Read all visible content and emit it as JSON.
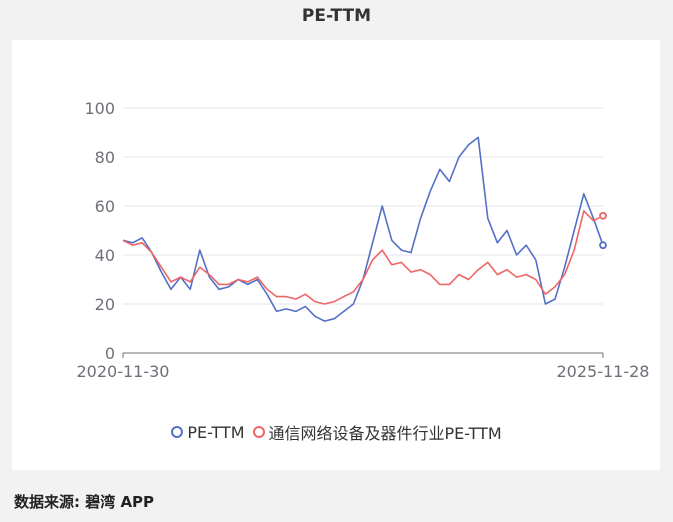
{
  "title": "PE-TTM",
  "source_label": "数据来源: 碧湾 APP",
  "chart_data": {
    "type": "line",
    "title": "PE-TTM",
    "x_start": "2020-11-30",
    "x_end": "2025-11-28",
    "x_tick_labels": [
      "2020-11-30",
      "2025-11-28"
    ],
    "ylim": [
      0,
      100
    ],
    "y_ticks": [
      0,
      20,
      40,
      60,
      80,
      100
    ],
    "grid": true,
    "legend_position": "bottom",
    "x": [
      0,
      0.02,
      0.04,
      0.06,
      0.08,
      0.1,
      0.12,
      0.14,
      0.16,
      0.18,
      0.2,
      0.22,
      0.24,
      0.26,
      0.28,
      0.3,
      0.32,
      0.34,
      0.36,
      0.38,
      0.4,
      0.42,
      0.44,
      0.46,
      0.48,
      0.5,
      0.52,
      0.54,
      0.56,
      0.58,
      0.6,
      0.62,
      0.64,
      0.66,
      0.68,
      0.7,
      0.72,
      0.74,
      0.76,
      0.78,
      0.8,
      0.82,
      0.84,
      0.86,
      0.88,
      0.9,
      0.92,
      0.94,
      0.96,
      0.98,
      1
    ],
    "series": [
      {
        "name": "PE-TTM",
        "color": "#5470c6",
        "values": [
          46,
          45,
          47,
          41,
          33,
          26,
          31,
          26,
          42,
          31,
          26,
          27,
          30,
          28,
          30,
          24,
          17,
          18,
          17,
          19,
          15,
          13,
          14,
          17,
          20,
          30,
          45,
          60,
          46,
          42,
          41,
          55,
          66,
          75,
          70,
          80,
          85,
          88,
          55,
          45,
          50,
          40,
          44,
          38,
          20,
          22,
          35,
          50,
          65,
          55,
          44
        ]
      },
      {
        "name": "通信网络设备及器件行业PE-TTM",
        "color": "#ee6666",
        "values": [
          46,
          44,
          45,
          41,
          35,
          29,
          31,
          29,
          35,
          32,
          28,
          28,
          30,
          29,
          31,
          26,
          23,
          23,
          22,
          24,
          21,
          20,
          21,
          23,
          25,
          30,
          38,
          42,
          36,
          37,
          33,
          34,
          32,
          28,
          28,
          32,
          30,
          34,
          37,
          32,
          34,
          31,
          32,
          30,
          24,
          27,
          32,
          42,
          58,
          54,
          56
        ]
      }
    ]
  }
}
